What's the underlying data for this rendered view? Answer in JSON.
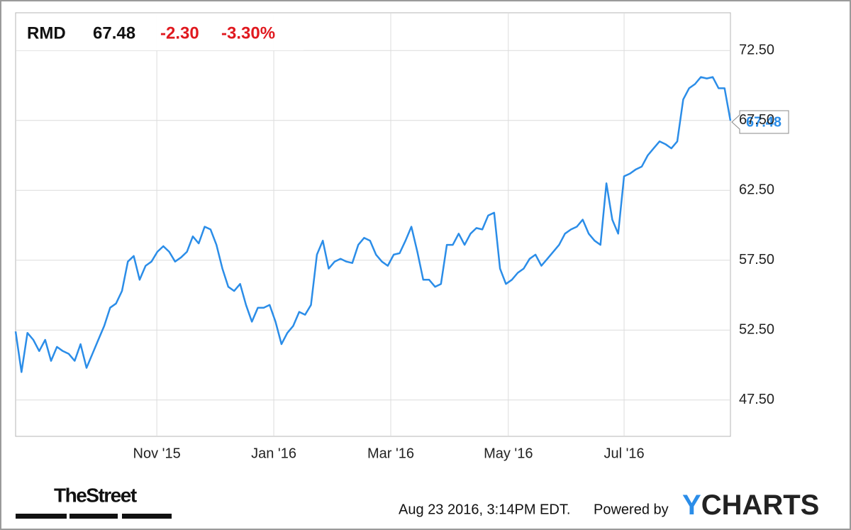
{
  "chart_data": {
    "type": "line",
    "series": [
      {
        "name": "RMD",
        "color": "#2b8de8",
        "values": [
          52.4,
          49.5,
          52.3,
          51.8,
          51.0,
          51.8,
          50.3,
          51.3,
          51.0,
          50.8,
          50.3,
          51.5,
          49.8,
          50.8,
          51.8,
          52.8,
          54.1,
          54.4,
          55.3,
          57.4,
          57.8,
          56.1,
          57.1,
          57.4,
          58.1,
          58.5,
          58.1,
          57.4,
          57.7,
          58.1,
          59.2,
          58.7,
          59.9,
          59.7,
          58.6,
          56.9,
          55.6,
          55.3,
          55.8,
          54.3,
          53.1,
          54.1,
          54.1,
          54.3,
          53.1,
          51.5,
          52.3,
          52.8,
          53.8,
          53.6,
          54.3,
          57.9,
          58.9,
          56.9,
          57.4,
          57.6,
          57.4,
          57.3,
          58.6,
          59.1,
          58.9,
          57.9,
          57.4,
          57.1,
          57.9,
          58.0,
          58.9,
          59.9,
          58.1,
          56.1,
          56.1,
          55.6,
          55.8,
          58.6,
          58.6,
          59.4,
          58.6,
          59.4,
          59.8,
          59.7,
          60.7,
          60.9,
          56.9,
          55.8,
          56.1,
          56.6,
          56.9,
          57.6,
          57.9,
          57.1,
          57.6,
          58.1,
          58.6,
          59.4,
          59.7,
          59.9,
          60.4,
          59.4,
          58.9,
          58.6,
          63.0,
          60.4,
          59.4,
          63.5,
          63.7,
          64.0,
          64.2,
          65.0,
          65.5,
          66.0,
          65.8,
          65.5,
          66.0,
          69.0,
          69.8,
          70.1,
          70.6,
          70.5,
          70.6,
          69.8,
          69.8,
          67.48
        ]
      }
    ],
    "quote": {
      "change": "-2.30",
      "change_percent": "-3.30%"
    },
    "xlim": [
      0,
      121
    ],
    "xticks": [
      {
        "value": 23.9,
        "label": "Nov '15"
      },
      {
        "value": 43.7,
        "label": "Jan '16"
      },
      {
        "value": 63.5,
        "label": "Mar '16"
      },
      {
        "value": 83.4,
        "label": "May '16"
      },
      {
        "value": 103.0,
        "label": "Jul '16"
      }
    ],
    "ylim": [
      44.9,
      75.2
    ],
    "yticks": [
      {
        "value": 47.5,
        "label": "47.50"
      },
      {
        "value": 52.5,
        "label": "52.50"
      },
      {
        "value": 57.5,
        "label": "57.50"
      },
      {
        "value": 62.5,
        "label": "62.50"
      },
      {
        "value": 67.5,
        "label": "67.50"
      },
      {
        "value": 72.5,
        "label": "72.50"
      }
    ],
    "grid": true
  },
  "footer": {
    "source": "TheStreet",
    "timestamp": "Aug 23 2016, 3:14PM EDT.",
    "powered": "Powered by",
    "logo": [
      "Y",
      "CHARTS"
    ]
  }
}
